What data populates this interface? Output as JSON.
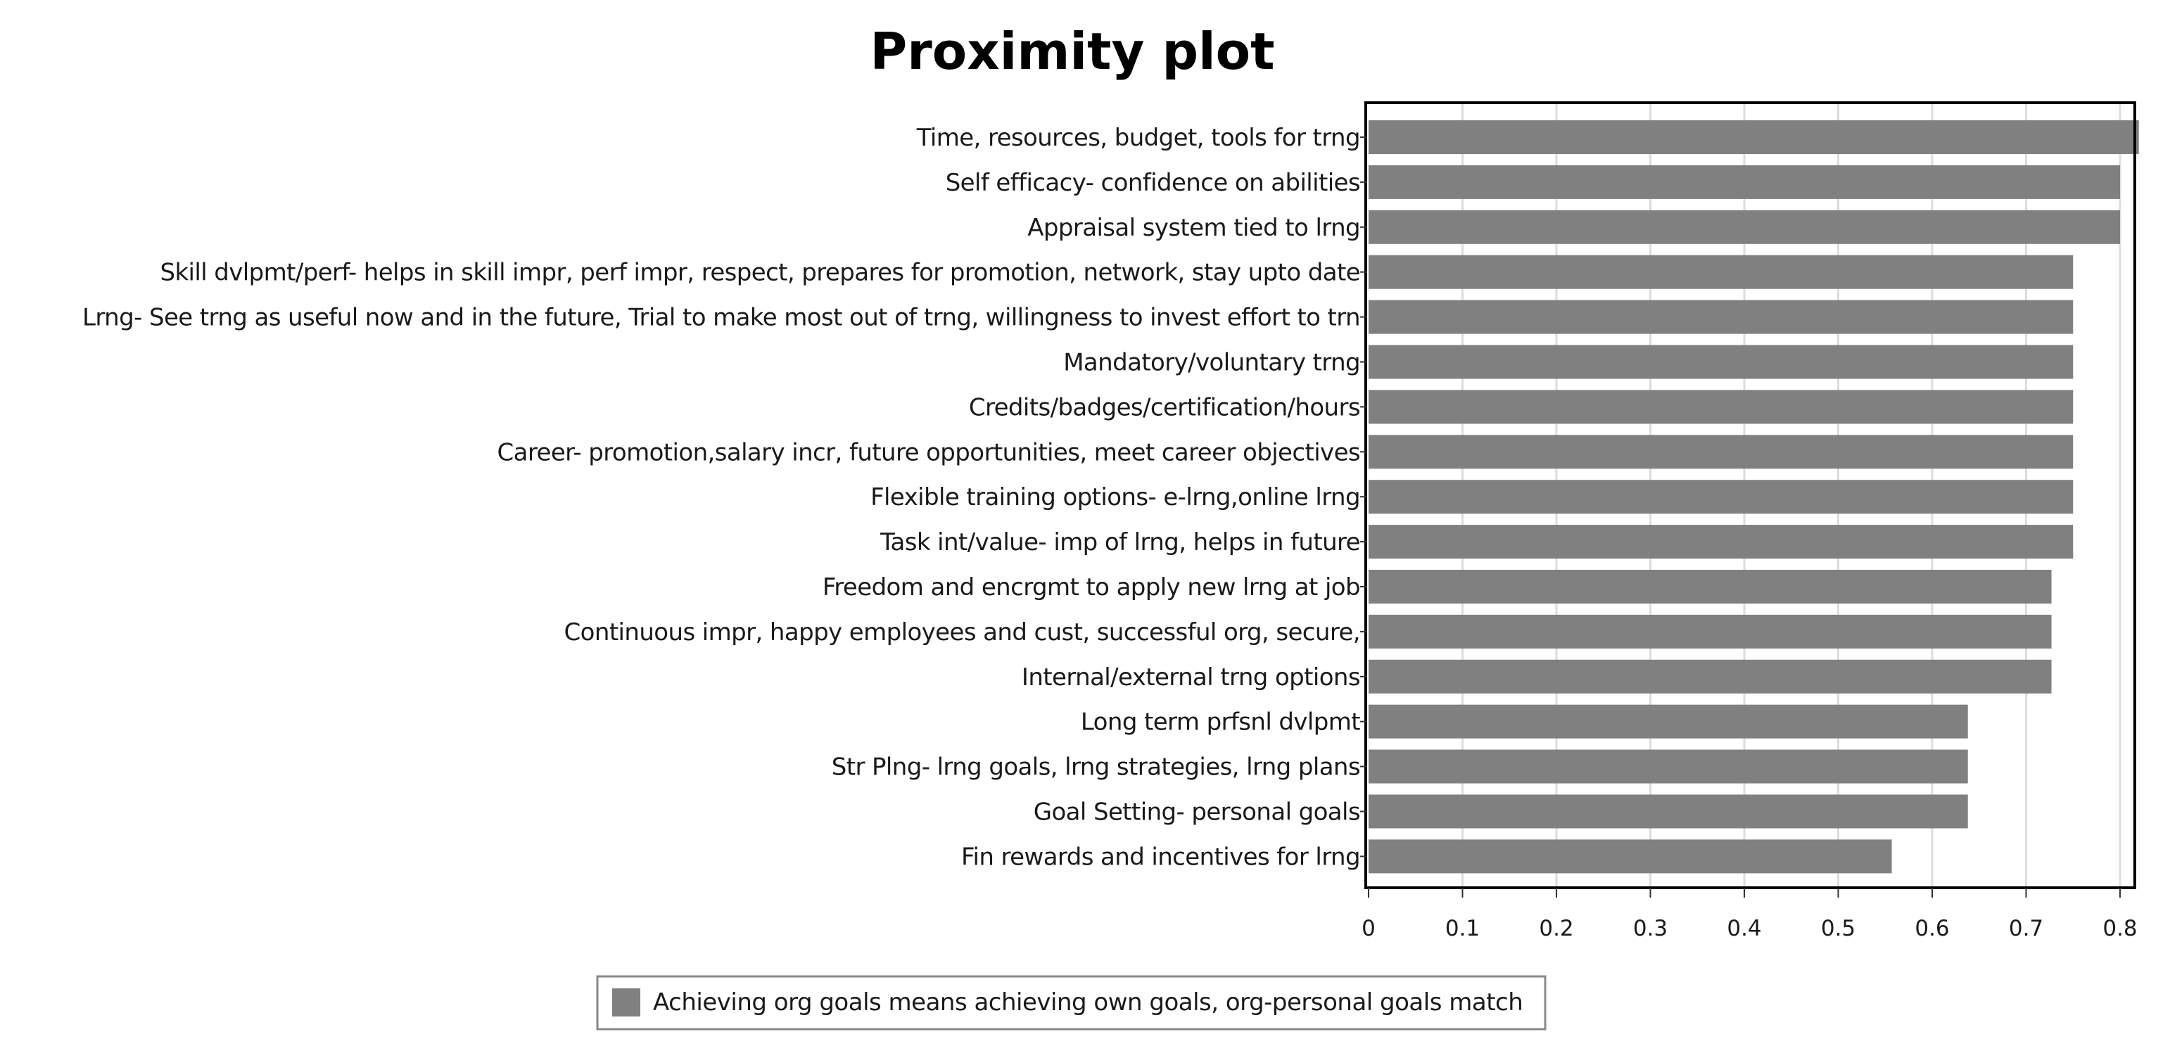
{
  "chart_data": {
    "type": "bar",
    "orientation": "horizontal",
    "title": "Proximity plot",
    "xlabel": "",
    "ylabel": "",
    "xlim": [
      0,
      0.83
    ],
    "xticks": [
      0,
      0.1,
      0.2,
      0.3,
      0.4,
      0.5,
      0.6,
      0.7,
      0.8
    ],
    "xtick_labels": [
      "0",
      "0.1",
      "0.2",
      "0.3",
      "0.4",
      "0.5",
      "0.6",
      "0.7",
      "0.8"
    ],
    "grid": true,
    "legend_position": "bottom-center",
    "bar_color": "#808080",
    "categories": [
      "Time, resources, budget, tools for trng",
      "Self efficacy- confidence on abilities",
      "Appraisal system tied to lrng",
      "Skill dvlpmt/perf- helps in skill impr, perf impr, respect, prepares for promotion, network, stay upto date",
      "Lrng- See trng as useful now and in the future, Trial to make most out of trng, willingness to invest effort to trn",
      "Mandatory/voluntary trng",
      "Credits/badges/certification/hours",
      "Career- promotion,salary incr, future opportunities, meet career objectives",
      "Flexible training options- e-lrng,online lrng",
      "Task int/value- imp of lrng, helps in future",
      "Freedom and encrgmt to apply new lrng at job",
      "Continuous impr, happy employees and cust, successful org, secure,",
      "Internal/external trng options",
      "Long term prfsnl dvlpmt",
      "Str Plng- lrng goals, lrng strategies, lrng plans",
      "Goal Setting- personal goals",
      "Fin rewards and incentives for lrng"
    ],
    "series": [
      {
        "name": "Achieving org goals means achieving own goals, org-personal goals match",
        "color": "#808080",
        "values": [
          0.82,
          0.8,
          0.8,
          0.75,
          0.75,
          0.75,
          0.75,
          0.75,
          0.75,
          0.75,
          0.727,
          0.727,
          0.727,
          0.638,
          0.638,
          0.638,
          0.557
        ]
      }
    ]
  }
}
